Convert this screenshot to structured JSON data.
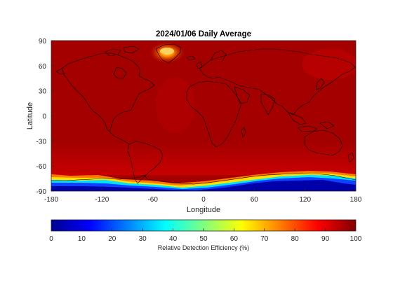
{
  "chart_data": {
    "type": "heatmap",
    "title": "2024/01/06 Daily Average",
    "xlabel": "Longitude",
    "ylabel": "Latitude",
    "xlim": [
      -180,
      180
    ],
    "ylim": [
      -90,
      90
    ],
    "xticks": [
      "-180",
      "-120",
      "-60",
      "0",
      "60",
      "120",
      "180"
    ],
    "yticks": [
      "90",
      "60",
      "30",
      "0",
      "-30",
      "-60",
      "-90"
    ],
    "colorbar": {
      "label": "Relative Detection Efficiency (%)",
      "range": [
        0,
        100
      ],
      "ticks": [
        "0",
        "10",
        "20",
        "30",
        "40",
        "50",
        "60",
        "70",
        "80",
        "90",
        "100"
      ],
      "colormap": "jet"
    },
    "field": {
      "background_value": 92,
      "features": [
        {
          "name": "greenland-low-efficiency",
          "lon": -40,
          "lat": 74,
          "value": 78
        },
        {
          "name": "antarctic-coast-low-efficiency",
          "lat_range": [
            -90,
            -68
          ],
          "value_range": [
            5,
            70
          ]
        }
      ]
    },
    "grid": false,
    "coastlines": true
  }
}
